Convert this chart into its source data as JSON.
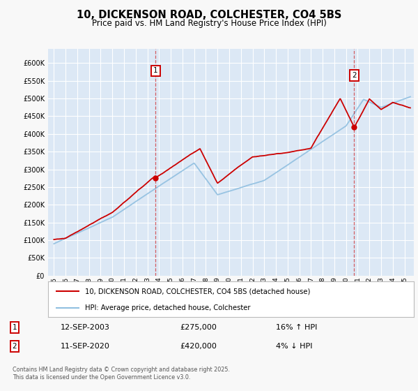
{
  "title": "10, DICKENSON ROAD, COLCHESTER, CO4 5BS",
  "subtitle": "Price paid vs. HM Land Registry's House Price Index (HPI)",
  "ylabel_ticks": [
    0,
    50000,
    100000,
    150000,
    200000,
    250000,
    300000,
    350000,
    400000,
    450000,
    500000,
    550000,
    600000
  ],
  "ylim": [
    0,
    640000
  ],
  "xlim_start": 1994.5,
  "xlim_end": 2025.8,
  "xticks": [
    1995,
    1996,
    1997,
    1998,
    1999,
    2000,
    2001,
    2002,
    2003,
    2004,
    2005,
    2006,
    2007,
    2008,
    2009,
    2010,
    2011,
    2012,
    2013,
    2014,
    2015,
    2016,
    2017,
    2018,
    2019,
    2020,
    2021,
    2022,
    2023,
    2024,
    2025
  ],
  "plot_bg_color": "#dce8f5",
  "fig_bg_color": "#f8f8f8",
  "grid_color": "#ffffff",
  "red_line_color": "#cc0000",
  "blue_line_color": "#90bfe0",
  "sale1_x": 2003.7,
  "sale1_y": 275000,
  "sale1_label": "1",
  "sale1_date": "12-SEP-2003",
  "sale1_price": "£275,000",
  "sale1_hpi": "16% ↑ HPI",
  "sale2_x": 2020.7,
  "sale2_y": 420000,
  "sale2_label": "2",
  "sale2_date": "11-SEP-2020",
  "sale2_price": "£420,000",
  "sale2_hpi": "4% ↓ HPI",
  "legend_label1": "10, DICKENSON ROAD, COLCHESTER, CO4 5BS (detached house)",
  "legend_label2": "HPI: Average price, detached house, Colchester",
  "footer": "Contains HM Land Registry data © Crown copyright and database right 2025.\nThis data is licensed under the Open Government Licence v3.0."
}
